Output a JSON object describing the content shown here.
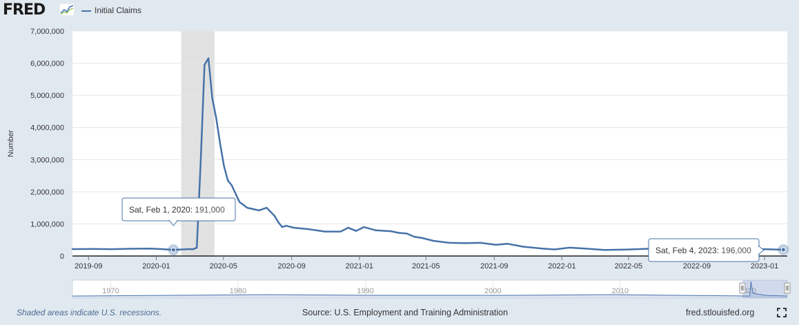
{
  "header": {
    "logo_text": "FRED",
    "logo_icon": "fred-graph-icon",
    "legend_label": "Initial Claims"
  },
  "colors": {
    "series": "#4572a7",
    "recession": "#e1e1e1",
    "background": "#e1e9f0",
    "plot": "#ffffff",
    "navigator_fill": "#c6d4e7"
  },
  "footer": {
    "note": "Shaded areas indicate U.S. recessions.",
    "source": "Source: U.S. Employment and Training Administration",
    "site": "fred.stlouisfed.org",
    "fullscreen_icon": "fullscreen-icon"
  },
  "chart_data": {
    "type": "line",
    "title": "",
    "xlabel": "",
    "ylabel": "Number",
    "ylim": [
      0,
      7000000
    ],
    "y_ticks": [
      0,
      1000000,
      2000000,
      3000000,
      4000000,
      5000000,
      6000000,
      7000000
    ],
    "y_tick_labels": [
      "0",
      "1,000,000",
      "2,000,000",
      "3,000,000",
      "4,000,000",
      "5,000,000",
      "6,000,000",
      "7,000,000"
    ],
    "xlim": [
      "2019-08-03",
      "2023-02-11"
    ],
    "x_ticks": [
      "2019-09-01",
      "2020-01-01",
      "2020-05-01",
      "2020-09-01",
      "2021-01-01",
      "2021-05-01",
      "2021-09-01",
      "2022-01-01",
      "2022-05-01",
      "2022-09-01",
      "2023-01-01"
    ],
    "x_tick_labels": [
      "2019-09",
      "2020-01",
      "2020-05",
      "2020-09",
      "2021-01",
      "2021-05",
      "2021-09",
      "2022-01",
      "2022-05",
      "2022-09",
      "2023-01"
    ],
    "grid": true,
    "legend": "top-left",
    "recessions": [
      {
        "start": "2020-02-15",
        "end": "2020-04-15"
      }
    ],
    "series": [
      {
        "name": "Initial Claims",
        "points": [
          [
            "2019-08-03",
            215000
          ],
          [
            "2019-09-07",
            220000
          ],
          [
            "2019-10-12",
            213000
          ],
          [
            "2019-11-16",
            225000
          ],
          [
            "2019-12-21",
            230000
          ],
          [
            "2020-01-11",
            215000
          ],
          [
            "2020-02-01",
            191000
          ],
          [
            "2020-02-29",
            215000
          ],
          [
            "2020-03-07",
            210000
          ],
          [
            "2020-03-14",
            256000
          ],
          [
            "2020-03-21",
            2900000
          ],
          [
            "2020-03-28",
            5950000
          ],
          [
            "2020-04-04",
            6150000
          ],
          [
            "2020-04-11",
            4900000
          ],
          [
            "2020-04-18",
            4300000
          ],
          [
            "2020-04-25",
            3500000
          ],
          [
            "2020-05-02",
            2800000
          ],
          [
            "2020-05-09",
            2350000
          ],
          [
            "2020-05-16",
            2200000
          ],
          [
            "2020-05-30",
            1680000
          ],
          [
            "2020-06-13",
            1500000
          ],
          [
            "2020-07-04",
            1420000
          ],
          [
            "2020-07-18",
            1500000
          ],
          [
            "2020-08-01",
            1250000
          ],
          [
            "2020-08-08",
            1050000
          ],
          [
            "2020-08-15",
            900000
          ],
          [
            "2020-08-22",
            940000
          ],
          [
            "2020-09-05",
            880000
          ],
          [
            "2020-10-03",
            830000
          ],
          [
            "2020-10-31",
            760000
          ],
          [
            "2020-11-28",
            760000
          ],
          [
            "2020-12-12",
            880000
          ],
          [
            "2020-12-26",
            780000
          ],
          [
            "2021-01-09",
            900000
          ],
          [
            "2021-01-30",
            800000
          ],
          [
            "2021-02-27",
            770000
          ],
          [
            "2021-03-13",
            720000
          ],
          [
            "2021-03-27",
            700000
          ],
          [
            "2021-04-10",
            600000
          ],
          [
            "2021-04-24",
            560000
          ],
          [
            "2021-05-15",
            470000
          ],
          [
            "2021-06-12",
            410000
          ],
          [
            "2021-07-10",
            400000
          ],
          [
            "2021-08-07",
            410000
          ],
          [
            "2021-09-04",
            350000
          ],
          [
            "2021-09-25",
            380000
          ],
          [
            "2021-10-23",
            290000
          ],
          [
            "2021-11-27",
            230000
          ],
          [
            "2021-12-18",
            205000
          ],
          [
            "2022-01-15",
            260000
          ],
          [
            "2022-02-12",
            230000
          ],
          [
            "2022-03-19",
            190000
          ],
          [
            "2022-04-23",
            200000
          ],
          [
            "2022-05-28",
            220000
          ],
          [
            "2022-07-16",
            250000
          ],
          [
            "2022-08-27",
            220000
          ],
          [
            "2022-10-01",
            200000
          ],
          [
            "2022-11-05",
            225000
          ],
          [
            "2022-12-10",
            215000
          ],
          [
            "2023-01-07",
            210000
          ],
          [
            "2023-02-04",
            196000
          ]
        ]
      }
    ],
    "tooltips": [
      {
        "date": "2020-02-01",
        "label": "Sat, Feb 1, 2020:",
        "value": "191,000"
      },
      {
        "date": "2023-02-04",
        "label": "Sat, Feb 4, 2023:",
        "value": "196,000"
      }
    ],
    "navigator": {
      "xlim": [
        "1967-01-01",
        "2023-02-11"
      ],
      "tick_labels": [
        "1970",
        "1980",
        "1990",
        "2000",
        "2010",
        "2020"
      ],
      "tick_years": [
        1970,
        1980,
        1990,
        2000,
        2010,
        2020
      ],
      "selection": [
        "2019-08-03",
        "2023-02-11"
      ]
    }
  }
}
